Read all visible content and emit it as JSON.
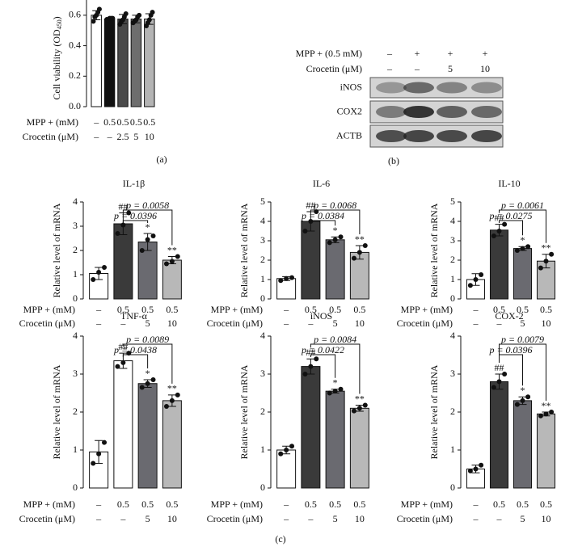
{
  "panel_labels": [
    "(a)",
    "(b)",
    "(c)"
  ],
  "blot": {
    "treatments": [
      {
        "label": "MPP + (0.5 mM)",
        "values": [
          "–",
          "+",
          "+",
          "+"
        ]
      },
      {
        "label": "Crocetin (μM)",
        "values": [
          "–",
          "–",
          "5",
          "10"
        ]
      }
    ],
    "bands": [
      "iNOS",
      "COX2",
      "ACTB"
    ]
  },
  "chart_data": [
    {
      "type": "bar",
      "ylabel_parts": [
        "Cell viability (OD",
        "450",
        ")"
      ],
      "values": [
        0.6,
        0.575,
        0.575,
        0.575,
        0.575
      ],
      "errors": [
        0.03,
        0.01,
        0.03,
        0.025,
        0.035
      ],
      "points": [
        [
          0.56,
          0.59,
          0.6,
          0.62,
          0.64
        ],
        [
          0.57,
          0.57,
          0.58,
          0.58,
          0.58
        ],
        [
          0.54,
          0.56,
          0.57,
          0.59,
          0.61
        ],
        [
          0.55,
          0.56,
          0.57,
          0.59,
          0.6
        ],
        [
          0.53,
          0.55,
          0.57,
          0.6,
          0.62
        ]
      ],
      "colors": [
        "#ffffff",
        "#111111",
        "#4a4a4a",
        "#6e6e6e",
        "#b4b4b4"
      ],
      "ylim": [
        0,
        0.7
      ],
      "yticks": [
        {
          "value": 0,
          "label": "0.0"
        },
        {
          "value": 0.2,
          "label": "0.2"
        },
        {
          "value": 0.4,
          "label": "0.4"
        },
        {
          "value": 0.6,
          "label": "0.6"
        }
      ],
      "treatments": [
        {
          "label": "MPP + (mM)",
          "values": [
            "–",
            "0.5",
            "0.5",
            "0.5",
            "0.5"
          ]
        },
        {
          "label": "Crocetin (μM)",
          "values": [
            "–",
            "–",
            "2.5",
            "5",
            "10"
          ]
        }
      ]
    },
    {
      "type": "bar",
      "title": "IL-1β",
      "ylabel": "Relative level of mRNA",
      "values": [
        1.05,
        3.1,
        2.35,
        1.6
      ],
      "errors": [
        0.25,
        0.45,
        0.35,
        0.15
      ],
      "points": [
        [
          0.8,
          1.1,
          1.3
        ],
        [
          2.7,
          3.05,
          3.55
        ],
        [
          2.0,
          2.45,
          2.6
        ],
        [
          1.45,
          1.55,
          1.75
        ]
      ],
      "colors": [
        "#ffffff",
        "#3a3a3a",
        "#6a6a70",
        "#b8b8b8"
      ],
      "stars": [
        null,
        "##",
        "*",
        "**"
      ],
      "brackets": [
        "p = 0.0058",
        "p = 0.0396"
      ],
      "ylim": [
        0,
        4
      ],
      "yticks": [
        0,
        1,
        2,
        3,
        4
      ],
      "treatments": [
        {
          "label": "MPP + (mM)",
          "values": [
            "–",
            "0.5",
            "0.5",
            "0.5"
          ]
        },
        {
          "label": "Crocetin (μM)",
          "values": [
            "–",
            "–",
            "5",
            "10"
          ]
        }
      ]
    },
    {
      "type": "bar",
      "title": "IL-6",
      "ylabel": "Relative level of mRNA",
      "values": [
        1.05,
        4.0,
        3.05,
        2.4
      ],
      "errors": [
        0.1,
        0.5,
        0.15,
        0.35
      ],
      "points": [
        [
          0.95,
          1.05,
          1.1
        ],
        [
          3.5,
          4.0,
          4.5
        ],
        [
          2.9,
          3.05,
          3.2
        ],
        [
          2.1,
          2.4,
          2.75
        ]
      ],
      "colors": [
        "#ffffff",
        "#3a3a3a",
        "#6a6a70",
        "#b8b8b8"
      ],
      "stars": [
        null,
        "##",
        "*",
        "**"
      ],
      "brackets": [
        "p = 0.0068",
        "p = 0.0384"
      ],
      "ylim": [
        0,
        5
      ],
      "yticks": [
        0,
        1,
        2,
        3,
        4,
        5
      ],
      "treatments": [
        {
          "label": "MPP + (mM)",
          "values": [
            "–",
            "0.5",
            "0.5",
            "0.5"
          ]
        },
        {
          "label": "Crocetin (μM)",
          "values": [
            "–",
            "–",
            "5",
            "10"
          ]
        }
      ]
    },
    {
      "type": "bar",
      "title": "IL-10",
      "ylabel": "Relative level of mRNA",
      "values": [
        1.0,
        3.55,
        2.6,
        1.95
      ],
      "errors": [
        0.3,
        0.3,
        0.1,
        0.35
      ],
      "points": [
        [
          0.7,
          1.0,
          1.25
        ],
        [
          3.25,
          3.5,
          3.85
        ],
        [
          2.5,
          2.6,
          2.7
        ],
        [
          1.6,
          1.95,
          2.3
        ]
      ],
      "colors": [
        "#ffffff",
        "#3a3a3a",
        "#6a6a70",
        "#b8b8b8"
      ],
      "stars": [
        null,
        "##",
        "*",
        "**"
      ],
      "brackets": [
        "p = 0.0061",
        "p = 0.0275"
      ],
      "ylim": [
        0,
        5
      ],
      "yticks": [
        0,
        1,
        2,
        3,
        4,
        5
      ],
      "treatments": [
        {
          "label": "MPP + (mM)",
          "values": [
            "–",
            "0.5",
            "0.5",
            "0.5"
          ]
        },
        {
          "label": "Crocetin (μM)",
          "values": [
            "–",
            "–",
            "5",
            "10"
          ]
        }
      ]
    },
    {
      "type": "bar",
      "title": "TNF-α",
      "ylabel": "Relative level of mRNA",
      "values": [
        0.95,
        3.35,
        2.75,
        2.3
      ],
      "errors": [
        0.3,
        0.2,
        0.1,
        0.15
      ],
      "points": [
        [
          0.65,
          0.9,
          1.2
        ],
        [
          3.2,
          3.3,
          3.55
        ],
        [
          2.65,
          2.75,
          2.85
        ],
        [
          2.15,
          2.3,
          2.45
        ]
      ],
      "colors": [
        "#ffffff",
        "#ffffff",
        "#6a6a70",
        "#b8b8b8"
      ],
      "stars": [
        null,
        "##",
        "*",
        "**"
      ],
      "brackets": [
        "p = 0.0089",
        "p = 0.0438"
      ],
      "ylim": [
        0,
        4
      ],
      "yticks": [
        0,
        1,
        2,
        3,
        4
      ],
      "treatments": [
        {
          "label": "MPP + (mM)",
          "values": [
            "–",
            "0.5",
            "0.5",
            "0.5"
          ]
        },
        {
          "label": "Crocetin (μM)",
          "values": [
            "–",
            "–",
            "5",
            "10"
          ]
        }
      ]
    },
    {
      "type": "bar",
      "title": "iNOS",
      "ylabel": "Relative level of mRNA",
      "values": [
        1.0,
        3.2,
        2.55,
        2.1
      ],
      "errors": [
        0.1,
        0.2,
        0.05,
        0.08
      ],
      "points": [
        [
          0.9,
          1.0,
          1.1
        ],
        [
          3.0,
          3.2,
          3.4
        ],
        [
          2.5,
          2.55,
          2.6
        ],
        [
          2.03,
          2.1,
          2.18
        ]
      ],
      "colors": [
        "#ffffff",
        "#3a3a3a",
        "#6a6a70",
        "#b8b8b8"
      ],
      "stars": [
        null,
        "##",
        "*",
        "**"
      ],
      "brackets": [
        "p = 0.0084",
        "p = 0.0422"
      ],
      "ylim": [
        0,
        4
      ],
      "yticks": [
        0,
        1,
        2,
        3,
        4
      ],
      "treatments": [
        {
          "label": "MPP + (mM)",
          "values": [
            "–",
            "0.5",
            "0.5",
            "0.5"
          ]
        },
        {
          "label": "Crocetin (μM)",
          "values": [
            "–",
            "–",
            "5",
            "10"
          ]
        }
      ]
    },
    {
      "type": "bar",
      "title": "COX-2",
      "ylabel": "Relative level of mRNA",
      "values": [
        0.5,
        2.8,
        2.3,
        1.95
      ],
      "errors": [
        0.1,
        0.2,
        0.1,
        0.05
      ],
      "points": [
        [
          0.45,
          0.5,
          0.6
        ],
        [
          2.65,
          2.8,
          3.0
        ],
        [
          2.2,
          2.3,
          2.4
        ],
        [
          1.9,
          1.95,
          2.0
        ]
      ],
      "colors": [
        "#ffffff",
        "#3a3a3a",
        "#6a6a70",
        "#b8b8b8"
      ],
      "stars": [
        null,
        "##",
        "*",
        "**"
      ],
      "brackets": [
        "p = 0.0079",
        "p = 0.0396"
      ],
      "ylim": [
        0,
        4
      ],
      "yticks": [
        0,
        1,
        2,
        3,
        4
      ],
      "treatments": [
        {
          "label": "MPP + (mM)",
          "values": [
            "–",
            "0.5",
            "0.5",
            "0.5"
          ]
        },
        {
          "label": "Crocetin (μM)",
          "values": [
            "–",
            "–",
            "5",
            "10"
          ]
        }
      ]
    }
  ]
}
